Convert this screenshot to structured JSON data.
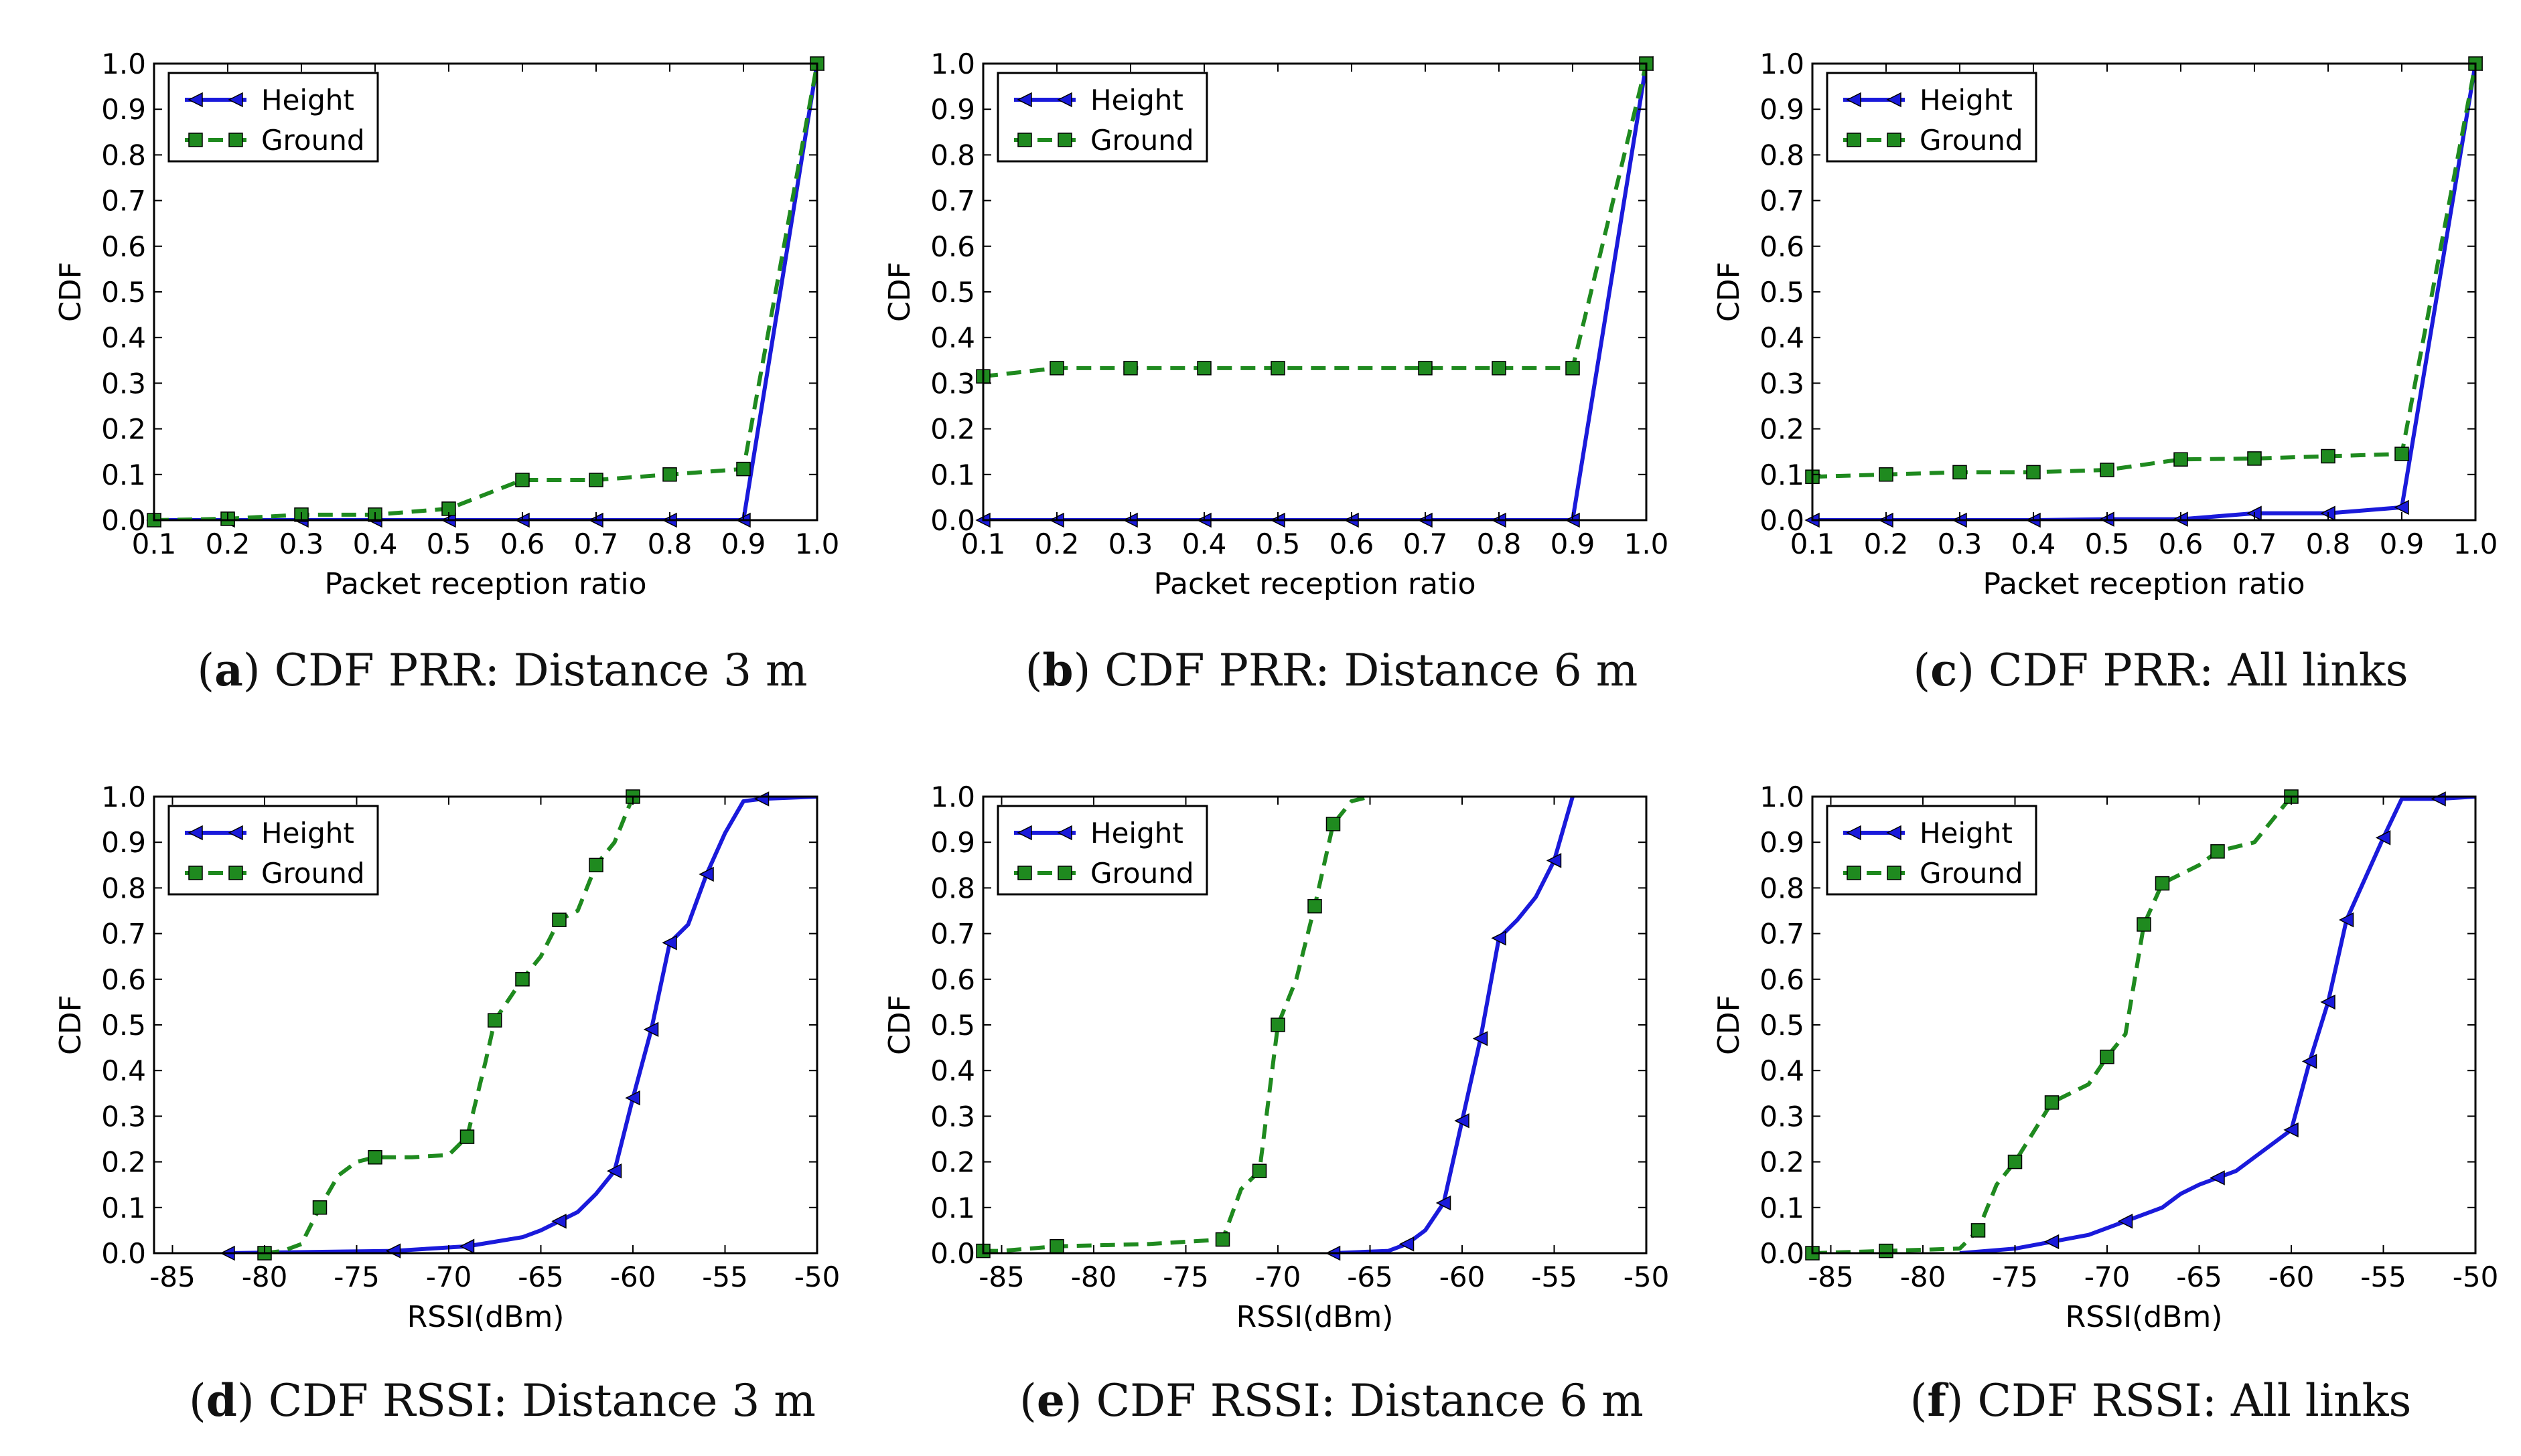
{
  "colors": {
    "height": "#1a1adb",
    "ground": "#1f8a1f",
    "axis": "#000000"
  },
  "legend_entries": [
    "Height",
    "Ground"
  ],
  "chart_data": [
    {
      "type": "line",
      "id": "a",
      "xlabel": "Packet reception ratio",
      "ylabel": "CDF",
      "xlim": [
        0.1,
        1.0
      ],
      "ylim": [
        0.0,
        1.0
      ],
      "xticks": [
        0.1,
        0.2,
        0.3,
        0.4,
        0.5,
        0.6,
        0.7,
        0.8,
        0.9,
        1.0
      ],
      "xtick_labels": [
        "0.1",
        "0.2",
        "0.3",
        "0.4",
        "0.5",
        "0.6",
        "0.7",
        "0.8",
        "0.9",
        "1.0"
      ],
      "yticks": [
        0.0,
        0.1,
        0.2,
        0.3,
        0.4,
        0.5,
        0.6,
        0.7,
        0.8,
        0.9,
        1.0
      ],
      "ytick_labels": [
        "0.0",
        "0.1",
        "0.2",
        "0.3",
        "0.4",
        "0.5",
        "0.6",
        "0.7",
        "0.8",
        "0.9",
        "1.0"
      ],
      "legend_position": "top-left",
      "caption": {
        "letter": "a",
        "text": "CDF PRR: Distance 3 m"
      },
      "series": [
        {
          "name": "Height",
          "x": [
            0.1,
            0.2,
            0.3,
            0.4,
            0.5,
            0.6,
            0.7,
            0.8,
            0.9,
            1.0
          ],
          "y": [
            0,
            0,
            0,
            0,
            0,
            0,
            0,
            0,
            0,
            1.0
          ]
        },
        {
          "name": "Ground",
          "x": [
            0.1,
            0.2,
            0.3,
            0.4,
            0.5,
            0.6,
            0.7,
            0.8,
            0.9,
            1.0
          ],
          "y": [
            0,
            0.003,
            0.012,
            0.012,
            0.025,
            0.088,
            0.088,
            0.1,
            0.112,
            1.0
          ]
        }
      ]
    },
    {
      "type": "line",
      "id": "b",
      "xlabel": "Packet reception ratio",
      "ylabel": "CDF",
      "xlim": [
        0.1,
        1.0
      ],
      "ylim": [
        0.0,
        1.0
      ],
      "xticks": [
        0.1,
        0.2,
        0.3,
        0.4,
        0.5,
        0.6,
        0.7,
        0.8,
        0.9,
        1.0
      ],
      "xtick_labels": [
        "0.1",
        "0.2",
        "0.3",
        "0.4",
        "0.5",
        "0.6",
        "0.7",
        "0.8",
        "0.9",
        "1.0"
      ],
      "yticks": [
        0.0,
        0.1,
        0.2,
        0.3,
        0.4,
        0.5,
        0.6,
        0.7,
        0.8,
        0.9,
        1.0
      ],
      "ytick_labels": [
        "0.0",
        "0.1",
        "0.2",
        "0.3",
        "0.4",
        "0.5",
        "0.6",
        "0.7",
        "0.8",
        "0.9",
        "1.0"
      ],
      "legend_position": "top-left",
      "caption": {
        "letter": "b",
        "text": "CDF PRR: Distance 6 m"
      },
      "series": [
        {
          "name": "Height",
          "x": [
            0.1,
            0.2,
            0.3,
            0.4,
            0.5,
            0.6,
            0.7,
            0.8,
            0.9,
            1.0
          ],
          "y": [
            0,
            0,
            0,
            0,
            0,
            0,
            0,
            0,
            0,
            1.0
          ]
        },
        {
          "name": "Ground",
          "x": [
            0.1,
            0.2,
            0.3,
            0.4,
            0.5,
            0.7,
            0.8,
            0.9,
            1.0
          ],
          "y": [
            0.315,
            0.333,
            0.333,
            0.333,
            0.333,
            0.333,
            0.333,
            0.333,
            1.0
          ]
        }
      ]
    },
    {
      "type": "line",
      "id": "c",
      "xlabel": "Packet reception ratio",
      "ylabel": "CDF",
      "xlim": [
        0.1,
        1.0
      ],
      "ylim": [
        0.0,
        1.0
      ],
      "xticks": [
        0.1,
        0.2,
        0.3,
        0.4,
        0.5,
        0.6,
        0.7,
        0.8,
        0.9,
        1.0
      ],
      "xtick_labels": [
        "0.1",
        "0.2",
        "0.3",
        "0.4",
        "0.5",
        "0.6",
        "0.7",
        "0.8",
        "0.9",
        "1.0"
      ],
      "yticks": [
        0.0,
        0.1,
        0.2,
        0.3,
        0.4,
        0.5,
        0.6,
        0.7,
        0.8,
        0.9,
        1.0
      ],
      "ytick_labels": [
        "0.0",
        "0.1",
        "0.2",
        "0.3",
        "0.4",
        "0.5",
        "0.6",
        "0.7",
        "0.8",
        "0.9",
        "1.0"
      ],
      "legend_position": "top-left",
      "caption": {
        "letter": "c",
        "text": "CDF PRR: All links"
      },
      "series": [
        {
          "name": "Height",
          "x": [
            0.1,
            0.2,
            0.3,
            0.4,
            0.5,
            0.6,
            0.7,
            0.8,
            0.9,
            1.0
          ],
          "y": [
            0,
            0,
            0,
            0,
            0.002,
            0.002,
            0.015,
            0.015,
            0.028,
            1.0
          ]
        },
        {
          "name": "Ground",
          "x": [
            0.1,
            0.2,
            0.3,
            0.4,
            0.5,
            0.6,
            0.7,
            0.8,
            0.9,
            1.0
          ],
          "y": [
            0.095,
            0.1,
            0.105,
            0.105,
            0.11,
            0.133,
            0.135,
            0.14,
            0.145,
            1.0
          ]
        }
      ]
    },
    {
      "type": "line",
      "id": "d",
      "xlabel": "RSSI(dBm)",
      "ylabel": "CDF",
      "xlim": [
        -86,
        -50
      ],
      "ylim": [
        0.0,
        1.0
      ],
      "xticks": [
        -85,
        -80,
        -75,
        -70,
        -65,
        -60,
        -55,
        -50
      ],
      "xtick_labels": [
        "-85",
        "-80",
        "-75",
        "-70",
        "-65",
        "-60",
        "-55",
        "-50"
      ],
      "yticks": [
        0.0,
        0.1,
        0.2,
        0.3,
        0.4,
        0.5,
        0.6,
        0.7,
        0.8,
        0.9,
        1.0
      ],
      "ytick_labels": [
        "0.0",
        "0.1",
        "0.2",
        "0.3",
        "0.4",
        "0.5",
        "0.6",
        "0.7",
        "0.8",
        "0.9",
        "1.0"
      ],
      "legend_position": "top-left",
      "caption": {
        "letter": "d",
        "text": "CDF RSSI: Distance 3 m"
      },
      "series": [
        {
          "name": "Height",
          "x": [
            -82,
            -73,
            -69,
            -66,
            -65,
            -64,
            -63,
            -62,
            -61,
            -60,
            -59,
            -58,
            -57,
            -56,
            -55,
            -54,
            -53,
            -50
          ],
          "y": [
            0,
            0.005,
            0.015,
            0.035,
            0.05,
            0.07,
            0.09,
            0.13,
            0.18,
            0.34,
            0.49,
            0.68,
            0.72,
            0.83,
            0.92,
            0.99,
            0.995,
            1.0
          ],
          "markers": [
            -82,
            -73,
            -69,
            -64,
            -61,
            -60,
            -59,
            -58,
            -56,
            -53
          ]
        },
        {
          "name": "Ground",
          "x": [
            -80,
            -79,
            -78,
            -77,
            -76,
            -75,
            -74,
            -72,
            -70,
            -69,
            -68,
            -67.5,
            -67,
            -66,
            -65,
            -64,
            -63,
            -62,
            -61,
            -60
          ],
          "y": [
            0,
            0.005,
            0.02,
            0.1,
            0.17,
            0.2,
            0.21,
            0.21,
            0.215,
            0.255,
            0.42,
            0.51,
            0.54,
            0.6,
            0.65,
            0.73,
            0.75,
            0.85,
            0.9,
            1.0
          ],
          "markers": [
            -80,
            -77,
            -74,
            -69,
            -67.5,
            -66,
            -64,
            -62,
            -60
          ]
        }
      ]
    },
    {
      "type": "line",
      "id": "e",
      "xlabel": "RSSI(dBm)",
      "ylabel": "CDF",
      "xlim": [
        -86,
        -50
      ],
      "ylim": [
        0.0,
        1.0
      ],
      "xticks": [
        -85,
        -80,
        -75,
        -70,
        -65,
        -60,
        -55,
        -50
      ],
      "xtick_labels": [
        "-85",
        "-80",
        "-75",
        "-70",
        "-65",
        "-60",
        "-55",
        "-50"
      ],
      "yticks": [
        0.0,
        0.1,
        0.2,
        0.3,
        0.4,
        0.5,
        0.6,
        0.7,
        0.8,
        0.9,
        1.0
      ],
      "ytick_labels": [
        "0.0",
        "0.1",
        "0.2",
        "0.3",
        "0.4",
        "0.5",
        "0.6",
        "0.7",
        "0.8",
        "0.9",
        "1.0"
      ],
      "legend_position": "top-left",
      "caption": {
        "letter": "e",
        "text": "CDF RSSI: Distance 6 m"
      },
      "series": [
        {
          "name": "Height",
          "x": [
            -67,
            -64,
            -63,
            -62,
            -61,
            -60,
            -59,
            -58,
            -57,
            -56,
            -55,
            -54
          ],
          "y": [
            0,
            0.005,
            0.02,
            0.05,
            0.11,
            0.29,
            0.47,
            0.69,
            0.73,
            0.78,
            0.86,
            1.0
          ],
          "markers": [
            -67,
            -63,
            -61,
            -60,
            -59,
            -58,
            -55
          ]
        },
        {
          "name": "Ground",
          "x": [
            -86,
            -85,
            -82,
            -77,
            -73,
            -72,
            -71,
            -70,
            -69,
            -68,
            -67,
            -66,
            -65
          ],
          "y": [
            0.005,
            0.005,
            0.015,
            0.02,
            0.03,
            0.14,
            0.18,
            0.5,
            0.6,
            0.76,
            0.94,
            0.99,
            1.0
          ],
          "markers": [
            -86,
            -82,
            -73,
            -71,
            -70,
            -68,
            -67
          ]
        }
      ]
    },
    {
      "type": "line",
      "id": "f",
      "xlabel": "RSSI(dBm)",
      "ylabel": "CDF",
      "xlim": [
        -86,
        -50
      ],
      "ylim": [
        0.0,
        1.0
      ],
      "xticks": [
        -85,
        -80,
        -75,
        -70,
        -65,
        -60,
        -55,
        -50
      ],
      "xtick_labels": [
        "-85",
        "-80",
        "-75",
        "-70",
        "-65",
        "-60",
        "-55",
        "-50"
      ],
      "yticks": [
        0.0,
        0.1,
        0.2,
        0.3,
        0.4,
        0.5,
        0.6,
        0.7,
        0.8,
        0.9,
        1.0
      ],
      "ytick_labels": [
        "0.0",
        "0.1",
        "0.2",
        "0.3",
        "0.4",
        "0.5",
        "0.6",
        "0.7",
        "0.8",
        "0.9",
        "1.0"
      ],
      "legend_position": "top-left",
      "caption": {
        "letter": "f",
        "text": "CDF RSSI: All links"
      },
      "series": [
        {
          "name": "Height",
          "x": [
            -78,
            -75,
            -73,
            -71,
            -69,
            -67,
            -66,
            -65,
            -64,
            -63,
            -62,
            -60,
            -59,
            -58,
            -57,
            -55,
            -54,
            -52,
            -50
          ],
          "y": [
            0,
            0.01,
            0.025,
            0.04,
            0.07,
            0.1,
            0.13,
            0.15,
            0.165,
            0.18,
            0.21,
            0.27,
            0.42,
            0.55,
            0.73,
            0.91,
            0.995,
            0.995,
            1.0
          ],
          "markers": [
            -73,
            -69,
            -64,
            -60,
            -59,
            -58,
            -57,
            -55,
            -52
          ]
        },
        {
          "name": "Ground",
          "x": [
            -86,
            -82,
            -78,
            -77,
            -76,
            -75,
            -73,
            -71,
            -70,
            -69,
            -68,
            -67,
            -65,
            -64,
            -62,
            -61,
            -60
          ],
          "y": [
            0,
            0.005,
            0.01,
            0.05,
            0.15,
            0.2,
            0.33,
            0.37,
            0.43,
            0.48,
            0.72,
            0.81,
            0.85,
            0.88,
            0.9,
            0.95,
            1.0
          ],
          "markers": [
            -86,
            -82,
            -77,
            -75,
            -73,
            -70,
            -68,
            -67,
            -64,
            -60
          ]
        }
      ]
    }
  ]
}
